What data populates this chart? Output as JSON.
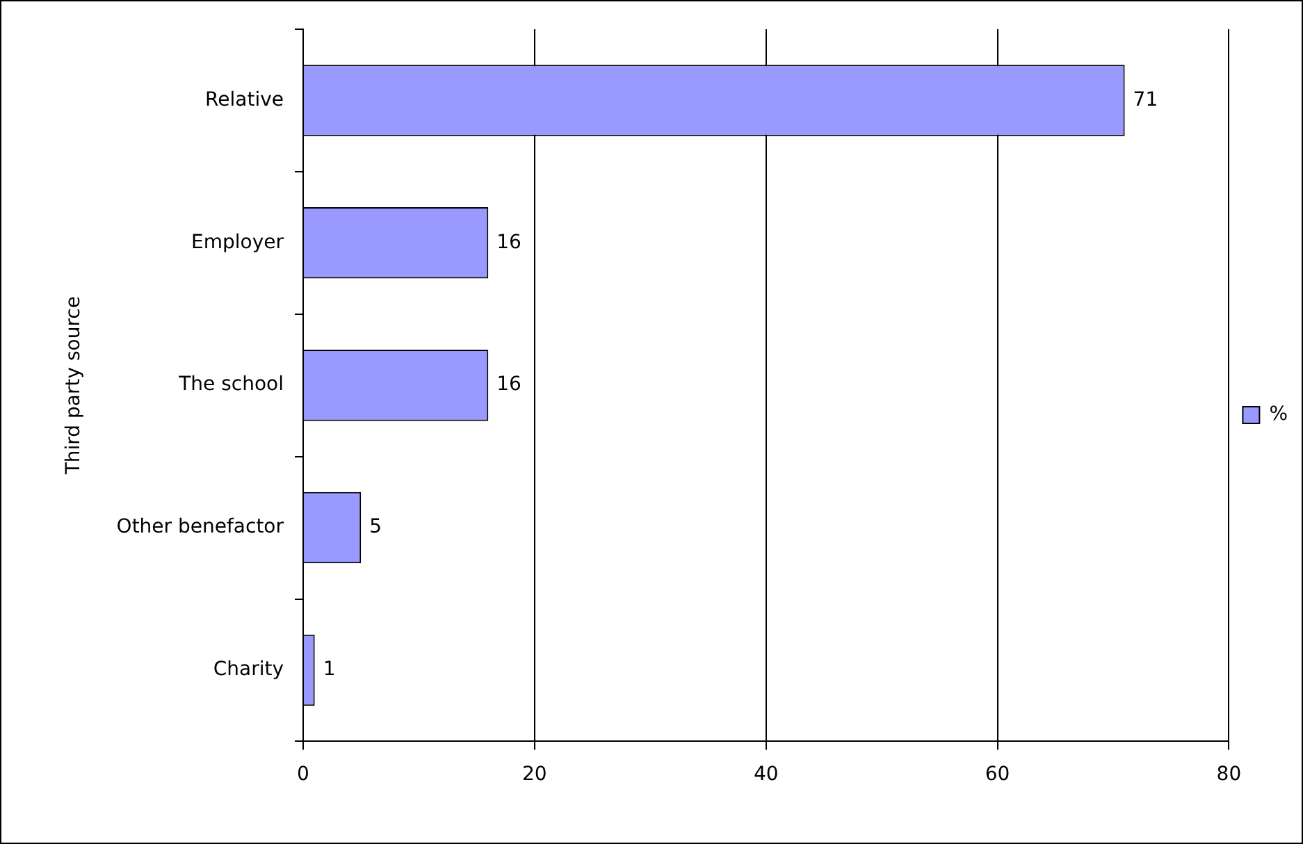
{
  "chart_data": {
    "type": "bar",
    "orientation": "horizontal",
    "ylabel": "Third party source",
    "categories": [
      "Relative",
      "Employer",
      "The school",
      "Other benefactor",
      "Charity"
    ],
    "series": [
      {
        "name": "%",
        "color": "#9999ff",
        "values": [
          71,
          16,
          16,
          5,
          1
        ]
      }
    ],
    "xlim": [
      0,
      80
    ],
    "xticks": [
      0,
      20,
      40,
      60,
      80
    ],
    "grid": "x",
    "legend": "right",
    "data_labels": true
  }
}
